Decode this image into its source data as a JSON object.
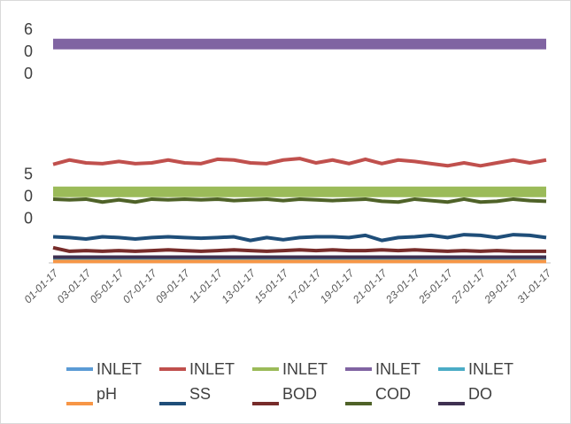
{
  "chart_data": {
    "type": "line",
    "categories": [
      "01-01-17",
      null,
      "03-01-17",
      null,
      "05-01-17",
      null,
      "07-01-17",
      null,
      "09-01-17",
      null,
      "11-01-17",
      null,
      "13-01-17",
      null,
      "15-01-17",
      null,
      "17-01-17",
      null,
      "19-01-17",
      null,
      "21-01-17",
      null,
      "23-01-17",
      null,
      "25-01-17",
      null,
      "27-01-17",
      null,
      "29-01-17",
      null,
      "31-01-17"
    ],
    "ylim": [
      454,
      625
    ],
    "yticks": [
      600,
      500
    ],
    "series": [
      {
        "name": "INLET",
        "color": "#5b9bd5",
        "values": [
          456,
          456,
          456,
          456,
          456,
          456,
          456,
          456,
          456,
          456,
          456,
          456,
          456,
          456,
          456,
          456,
          456,
          456,
          456,
          456,
          456,
          456,
          456,
          456,
          456,
          456,
          456,
          456,
          456,
          456,
          456
        ]
      },
      {
        "name": "INLET",
        "color": "#c0504d",
        "values": [
          522,
          525,
          523,
          522.5,
          524,
          522.5,
          523,
          525,
          523,
          522.5,
          525.5,
          525,
          523,
          522.5,
          525,
          526,
          523,
          525,
          522.5,
          525.5,
          522.5,
          525,
          524,
          522.5,
          521,
          523,
          521,
          523,
          525,
          523,
          525
        ]
      },
      {
        "name": "INLET",
        "color": "#9bbb59",
        "values": [
          503,
          503,
          503,
          503,
          503,
          503,
          503,
          503,
          503,
          503,
          503,
          503,
          503,
          503,
          503,
          503,
          503,
          503,
          503,
          503,
          503,
          503,
          503,
          503,
          503,
          503,
          503,
          503,
          503,
          503,
          503
        ]
      },
      {
        "name": "INLET",
        "color": "#8064a2",
        "values": [
          605,
          605,
          605,
          605,
          605,
          605,
          605,
          605,
          605,
          605,
          605,
          605,
          605,
          605,
          605,
          605,
          605,
          605,
          605,
          605,
          605,
          605,
          605,
          605,
          605,
          605,
          605,
          605,
          605,
          605,
          605
        ]
      },
      {
        "name": "INLET",
        "color": "#4bacc6",
        "values": [
          457,
          457,
          457,
          457,
          457,
          457,
          457,
          457,
          457,
          457,
          457,
          457,
          457,
          457,
          457,
          457,
          457,
          457,
          457,
          457,
          457,
          457,
          457,
          457,
          457,
          457,
          457,
          457,
          457,
          457,
          457
        ]
      },
      {
        "name": "pH",
        "color": "#f79646",
        "values": [
          455,
          455,
          455,
          455,
          455,
          455,
          455,
          455,
          455,
          455,
          455,
          455,
          455,
          455,
          455,
          455,
          455,
          455,
          455,
          455,
          455,
          455,
          455,
          455,
          455,
          455,
          455,
          455,
          455,
          455,
          455
        ]
      },
      {
        "name": "SS",
        "color": "#1f4e79",
        "values": [
          472,
          471.5,
          470.5,
          472,
          471.5,
          470.5,
          471.5,
          472,
          471.5,
          471,
          471.5,
          472,
          469.5,
          471.5,
          470,
          471.5,
          472,
          472,
          471.5,
          473,
          469.5,
          471.5,
          472,
          473,
          471.5,
          473.5,
          473,
          471.5,
          473.5,
          473,
          471.5
        ]
      },
      {
        "name": "BOD",
        "color": "#772c2a",
        "values": [
          464.5,
          462,
          462.5,
          462,
          462.5,
          462,
          462.5,
          463,
          462.5,
          462,
          462.5,
          463,
          462.5,
          462,
          462.5,
          463,
          462.5,
          463,
          462.5,
          462.5,
          463,
          462.5,
          463,
          462.5,
          462,
          462.5,
          462,
          462.5,
          462,
          462,
          462
        ]
      },
      {
        "name": "COD",
        "color": "#4f6228",
        "values": [
          498,
          497.5,
          498,
          496,
          497.5,
          496,
          498,
          497.5,
          498,
          497.5,
          498,
          497,
          497.5,
          498,
          497,
          498,
          497.5,
          497,
          497.5,
          498,
          496.5,
          496,
          498,
          497,
          496,
          498,
          496,
          496.5,
          498,
          497,
          496.5
        ]
      },
      {
        "name": "DO",
        "color": "#3f3151",
        "values": [
          458,
          458,
          458,
          458,
          458,
          458,
          458,
          458,
          458,
          458,
          458,
          458,
          458,
          458,
          458,
          458,
          458,
          458,
          458,
          458,
          458,
          458,
          458,
          458,
          458,
          458,
          458,
          458,
          458,
          458,
          458
        ]
      }
    ]
  }
}
